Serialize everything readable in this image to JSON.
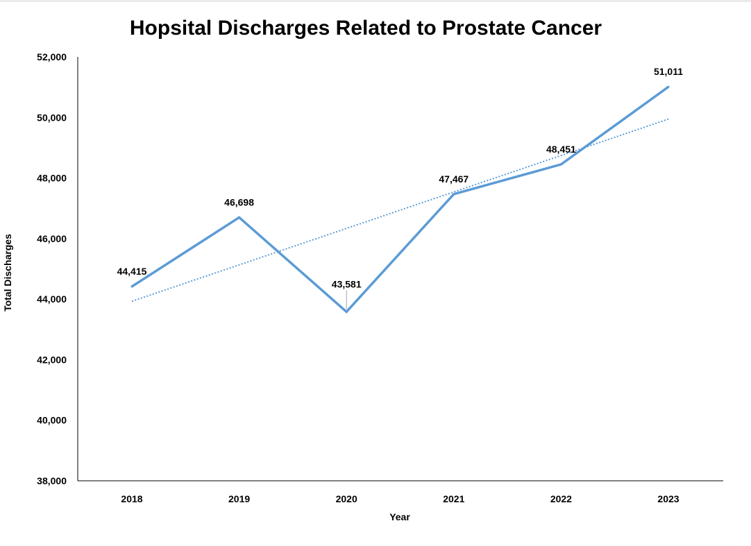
{
  "chart_data": {
    "type": "line",
    "title": "Hopsital Discharges Related to Prostate Cancer",
    "xlabel": "Year",
    "ylabel": "Total Discharges",
    "categories": [
      "2018",
      "2019",
      "2020",
      "2021",
      "2022",
      "2023"
    ],
    "series": [
      {
        "values": [
          44415,
          46698,
          43581,
          47467,
          48451,
          51011
        ],
        "data_labels": [
          "44,415",
          "46,698",
          "43,581",
          "47,467",
          "48,451",
          "51,011"
        ],
        "color": "#5b9bd5"
      }
    ],
    "trendline": {
      "type": "linear",
      "style": "dotted",
      "color": "#5b9bd5"
    },
    "ylim": [
      38000,
      52000
    ],
    "yticks": [
      38000,
      40000,
      42000,
      44000,
      46000,
      48000,
      50000,
      52000
    ],
    "ytick_labels": [
      "38,000",
      "40,000",
      "42,000",
      "44,000",
      "46,000",
      "48,000",
      "50,000",
      "52,000"
    ],
    "grid": false,
    "legend": "none"
  }
}
